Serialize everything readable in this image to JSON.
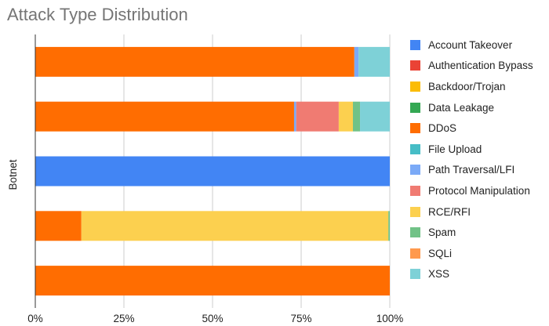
{
  "chart_data": {
    "type": "bar",
    "orientation": "horizontal",
    "stacked": "percent",
    "title": "Attack Type Distribution",
    "xlabel": "",
    "ylabel": "Botnet",
    "xlim": [
      0,
      100
    ],
    "x_ticks": [
      "0%",
      "25%",
      "50%",
      "75%",
      "100%"
    ],
    "grid": true,
    "legend_position": "right",
    "categories": [
      "",
      "",
      "",
      "",
      ""
    ],
    "series": [
      {
        "name": "Account Takeover",
        "color": "#4285F4",
        "values": [
          0,
          0,
          100,
          0,
          0
        ]
      },
      {
        "name": "Authentication Bypass",
        "color": "#EA4335",
        "values": [
          0,
          0,
          0,
          0,
          0
        ]
      },
      {
        "name": "Backdoor/Trojan",
        "color": "#FBBC04",
        "values": [
          0,
          0,
          0,
          0,
          0
        ]
      },
      {
        "name": "Data Leakage",
        "color": "#34A853",
        "values": [
          0,
          0,
          0,
          0,
          0
        ]
      },
      {
        "name": "DDoS",
        "color": "#FF6D01",
        "values": [
          90,
          73,
          0,
          13,
          100
        ]
      },
      {
        "name": "File Upload",
        "color": "#46BDC6",
        "values": [
          0,
          0,
          0,
          0,
          0
        ]
      },
      {
        "name": "Path Traversal/LFI",
        "color": "#7BAAF7",
        "values": [
          1.2,
          0.6,
          0,
          0,
          0
        ]
      },
      {
        "name": "Protocol Manipulation",
        "color": "#F07B72",
        "values": [
          0,
          12,
          0,
          0,
          0
        ]
      },
      {
        "name": "RCE/RFI",
        "color": "#FCD04F",
        "values": [
          0,
          4,
          0,
          86.6,
          0
        ]
      },
      {
        "name": "Spam",
        "color": "#71C287",
        "values": [
          0,
          2,
          0,
          0.4,
          0
        ]
      },
      {
        "name": "SQLi",
        "color": "#FF994D",
        "values": [
          0,
          0,
          0,
          0,
          0
        ]
      },
      {
        "name": "XSS",
        "color": "#7ED1D7",
        "values": [
          8.8,
          8.4,
          0,
          0,
          0
        ]
      }
    ]
  }
}
